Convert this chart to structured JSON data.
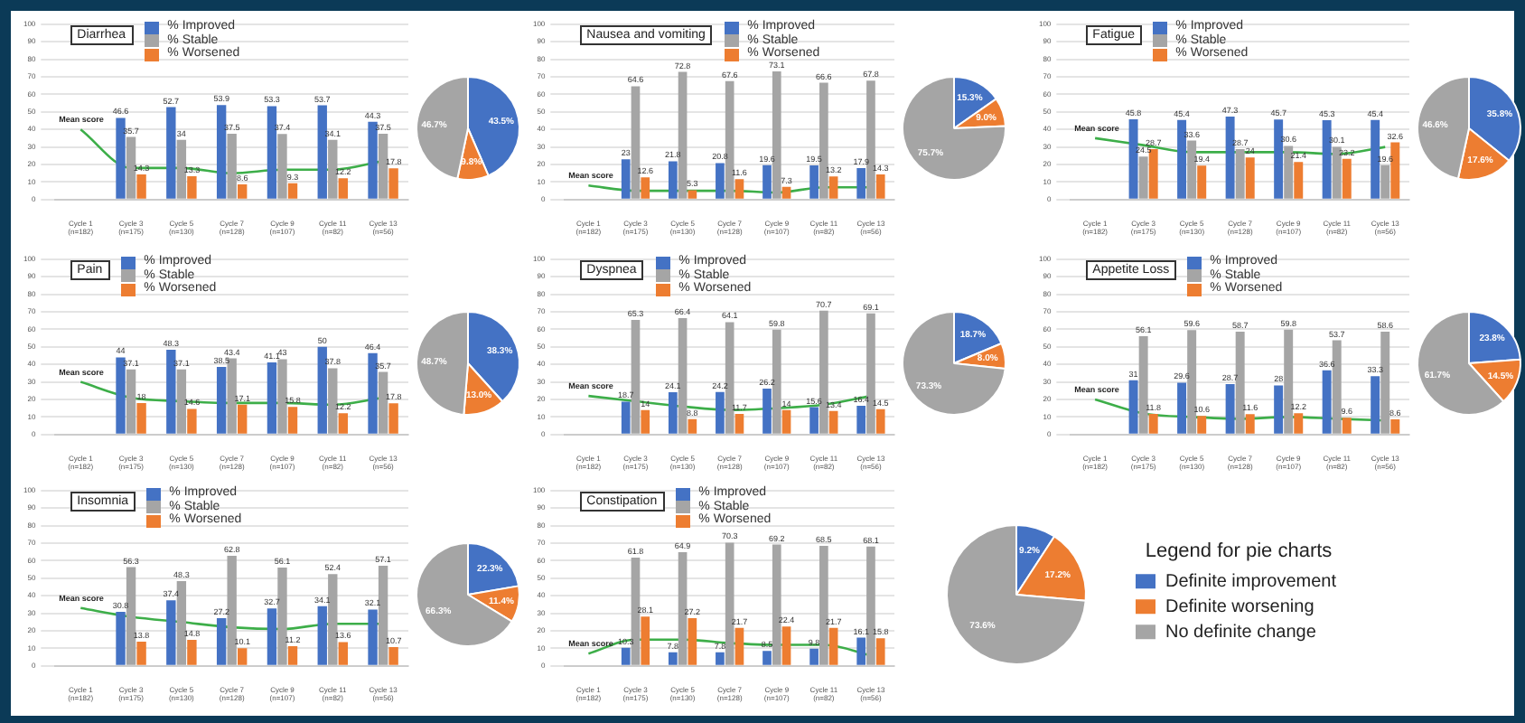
{
  "chart_data": [
    {
      "type": "bar",
      "title": "Diarrhea",
      "categories": [
        "Cycle 1 (n=182)",
        "Cycle 3 (n=175)",
        "Cycle 5 (n=130)",
        "Cycle 7 (n=128)",
        "Cycle 9 (n=107)",
        "Cycle 11 (n=82)",
        "Cycle 13 (n=56)"
      ],
      "ylim": [
        0,
        100
      ],
      "yticks": [
        0,
        10,
        20,
        30,
        40,
        50,
        60,
        70,
        80,
        90,
        100
      ],
      "grid": "y",
      "legend": "top left",
      "marker": "none",
      "series": [
        {
          "name": "% Improved",
          "color": "#4472c4",
          "values": [
            null,
            46.6,
            52.7,
            53.9,
            53.3,
            53.7,
            44.3
          ],
          "value_labels": [
            null,
            "46.6",
            "52.7",
            "53.9",
            "53.3",
            "53.7",
            "44.3"
          ]
        },
        {
          "name": "% Stable",
          "color": "#a5a5a5",
          "values": [
            null,
            35.7,
            34,
            37.5,
            37.4,
            34.1,
            37.5
          ],
          "value_labels": [
            null,
            "35.7",
            "34",
            "37.5",
            "37.4",
            "34.1",
            "37.5"
          ]
        },
        {
          "name": "% Worsened",
          "color": "#ed7d31",
          "values": [
            null,
            14.3,
            13.3,
            8.6,
            9.3,
            12.2,
            17.8
          ],
          "value_labels": [
            null,
            "14.3",
            "13.3",
            "8.6",
            "9.3",
            "12.2",
            "17.8"
          ]
        },
        {
          "name": "Mean score",
          "type": "line",
          "color": "#3dae49",
          "values": [
            40,
            18,
            18,
            15,
            17,
            17,
            22
          ]
        }
      ]
    },
    {
      "type": "pie",
      "colors": [
        "#4472c4",
        "#ed7d31",
        "#a5a5a5"
      ],
      "values": [
        43.5,
        9.8,
        46.7
      ],
      "value_labels": [
        "43.5%",
        "9.8%",
        "46.7%"
      ]
    },
    {
      "type": "bar",
      "title": "Nausea and vomiting",
      "categories": [
        "Cycle 1 (n=182)",
        "Cycle 3 (n=175)",
        "Cycle 5 (n=130)",
        "Cycle 7 (n=128)",
        "Cycle 9 (n=107)",
        "Cycle 11 (n=82)",
        "Cycle 13 (n=56)"
      ],
      "ylim": [
        0,
        100
      ],
      "yticks": [
        0,
        10,
        20,
        30,
        40,
        50,
        60,
        70,
        80,
        90,
        100
      ],
      "grid": "y",
      "legend": "top",
      "marker": "none",
      "series": [
        {
          "name": "% Improved",
          "color": "#4472c4",
          "values": [
            null,
            23,
            21.8,
            20.8,
            19.6,
            19.5,
            17.9
          ],
          "value_labels": [
            null,
            "23",
            "21.8",
            "20.8",
            "19.6",
            "19.5",
            "17.9"
          ]
        },
        {
          "name": "% Stable",
          "color": "#a5a5a5",
          "values": [
            null,
            64.6,
            72.8,
            67.6,
            73.1,
            66.6,
            67.8
          ],
          "value_labels": [
            null,
            "64.6",
            "72.8",
            "67.6",
            "73.1",
            "66.6",
            "67.8"
          ]
        },
        {
          "name": "% Worsened",
          "color": "#ed7d31",
          "values": [
            null,
            12.6,
            5.3,
            11.6,
            7.3,
            13.2,
            14.3
          ],
          "value_labels": [
            null,
            "12.6",
            "5.3",
            "11.6",
            "7.3",
            "13.2",
            "14.3"
          ]
        },
        {
          "name": "Mean score",
          "type": "line",
          "color": "#3dae49",
          "values": [
            8,
            5,
            5,
            5,
            4,
            7,
            7
          ]
        }
      ]
    },
    {
      "type": "pie",
      "colors": [
        "#4472c4",
        "#ed7d31",
        "#a5a5a5"
      ],
      "values": [
        15.3,
        9.0,
        75.7
      ],
      "value_labels": [
        "15.3%",
        "9.0%",
        "75.7%"
      ]
    },
    {
      "type": "bar",
      "title": "Fatigue",
      "categories": [
        "Cycle 1 (n=182)",
        "Cycle 3 (n=175)",
        "Cycle 5 (n=130)",
        "Cycle 7 (n=128)",
        "Cycle 9 (n=107)",
        "Cycle 11 (n=82)",
        "Cycle 13 (n=56)"
      ],
      "ylim": [
        0,
        100
      ],
      "yticks": [
        0,
        10,
        20,
        30,
        40,
        50,
        60,
        70,
        80,
        90,
        100
      ],
      "grid": "y",
      "legend": "top left",
      "marker": "none",
      "series": [
        {
          "name": "% Improved",
          "color": "#4472c4",
          "values": [
            null,
            45.8,
            45.4,
            47.3,
            45.7,
            45.3,
            45.4
          ],
          "value_labels": [
            null,
            "45.8",
            "45.4",
            "47.3",
            "45.7",
            "45.3",
            "45.4"
          ]
        },
        {
          "name": "% Stable",
          "color": "#a5a5a5",
          "values": [
            null,
            24.5,
            33.6,
            28.7,
            30.6,
            30.1,
            19.6
          ],
          "value_labels": [
            null,
            "24.5",
            "33.6",
            "28.7",
            "30.6",
            "30.1",
            "19.6"
          ]
        },
        {
          "name": "% Worsened",
          "color": "#ed7d31",
          "values": [
            null,
            28.7,
            19.4,
            24,
            21.4,
            23.2,
            32.6
          ],
          "value_labels": [
            null,
            "28.7",
            "19.4",
            "24",
            "21.4",
            "23.2",
            "32.6"
          ]
        },
        {
          "name": "Mean score",
          "type": "line",
          "color": "#3dae49",
          "values": [
            35,
            31,
            27,
            27,
            27,
            26,
            30
          ]
        }
      ]
    },
    {
      "type": "pie",
      "colors": [
        "#4472c4",
        "#ed7d31",
        "#a5a5a5"
      ],
      "values": [
        35.8,
        17.6,
        46.6
      ],
      "value_labels": [
        "35.8%",
        "17.6%",
        "46.6%"
      ]
    },
    {
      "type": "bar",
      "title": "Pain",
      "categories": [
        "Cycle 1 (n=182)",
        "Cycle 3 (n=175)",
        "Cycle 5 (n=130)",
        "Cycle 7 (n=128)",
        "Cycle 9 (n=107)",
        "Cycle 11 (n=82)",
        "Cycle 13 (n=56)"
      ],
      "ylim": [
        0,
        100
      ],
      "yticks": [
        0,
        10,
        20,
        30,
        40,
        50,
        60,
        70,
        80,
        90,
        100
      ],
      "grid": "y",
      "legend": "top left",
      "marker": "none",
      "series": [
        {
          "name": "% Improved",
          "color": "#4472c4",
          "values": [
            null,
            44,
            48.3,
            38.5,
            41.1,
            50,
            46.4
          ],
          "value_labels": [
            null,
            "44",
            "48.3",
            "38.5",
            "41.1",
            "50",
            "46.4"
          ]
        },
        {
          "name": "% Stable",
          "color": "#a5a5a5",
          "values": [
            null,
            37.1,
            37.1,
            43.4,
            43,
            37.8,
            35.7
          ],
          "value_labels": [
            null,
            "37.1",
            "37.1",
            "43.4",
            "43",
            "37.8",
            "35.7"
          ]
        },
        {
          "name": "% Worsened",
          "color": "#ed7d31",
          "values": [
            null,
            18,
            14.6,
            17.1,
            15.8,
            12.2,
            17.8
          ],
          "value_labels": [
            null,
            "18",
            "14.6",
            "17.1",
            "15.8",
            "12.2",
            "17.8"
          ]
        },
        {
          "name": "Mean score",
          "type": "line",
          "color": "#3dae49",
          "values": [
            30,
            21,
            19,
            18,
            18,
            17,
            21
          ]
        }
      ]
    },
    {
      "type": "pie",
      "colors": [
        "#4472c4",
        "#ed7d31",
        "#a5a5a5"
      ],
      "values": [
        38.3,
        13.0,
        48.7
      ],
      "value_labels": [
        "38.3%",
        "13.0%",
        "48.7%"
      ]
    },
    {
      "type": "bar",
      "title": "Dyspnea",
      "categories": [
        "Cycle 1 (n=182)",
        "Cycle 3 (n=175)",
        "Cycle 5 (n=130)",
        "Cycle 7 (n=128)",
        "Cycle 9 (n=107)",
        "Cycle 11 (n=82)",
        "Cycle 13 (n=56)"
      ],
      "ylim": [
        0,
        100
      ],
      "yticks": [
        0,
        10,
        20,
        30,
        40,
        50,
        60,
        70,
        80,
        90,
        100
      ],
      "grid": "y",
      "legend": "top left",
      "marker": "none",
      "series": [
        {
          "name": "% Improved",
          "color": "#4472c4",
          "values": [
            null,
            18.7,
            24.1,
            24.2,
            26.2,
            15.6,
            16.4
          ],
          "value_labels": [
            null,
            "18.7",
            "24.1",
            "24.2",
            "26.2",
            "15.6",
            "16.4"
          ]
        },
        {
          "name": "% Stable",
          "color": "#a5a5a5",
          "values": [
            null,
            65.3,
            66.4,
            64.1,
            59.8,
            70.7,
            69.1
          ],
          "value_labels": [
            null,
            "65.3",
            "66.4",
            "64.1",
            "59.8",
            "70.7",
            "69.1"
          ]
        },
        {
          "name": "% Worsened",
          "color": "#ed7d31",
          "values": [
            null,
            14,
            8.8,
            11.7,
            14,
            13.4,
            14.5
          ],
          "value_labels": [
            null,
            "14",
            "8.8",
            "11.7",
            "14",
            "13.4",
            "14.5"
          ]
        },
        {
          "name": "Mean score",
          "type": "line",
          "color": "#3dae49",
          "values": [
            22,
            19,
            16,
            14,
            15,
            17,
            22
          ]
        }
      ]
    },
    {
      "type": "pie",
      "colors": [
        "#4472c4",
        "#ed7d31",
        "#a5a5a5"
      ],
      "values": [
        18.7,
        8.0,
        73.3
      ],
      "value_labels": [
        "18.7%",
        "8.0%",
        "73.3%"
      ]
    },
    {
      "type": "bar",
      "title": "Appetite Loss",
      "categories": [
        "Cycle 1 (n=182)",
        "Cycle 3 (n=175)",
        "Cycle 5 (n=130)",
        "Cycle 7 (n=128)",
        "Cycle 9 (n=107)",
        "Cycle 11 (n=82)",
        "Cycle 13 (n=56)"
      ],
      "ylim": [
        0,
        100
      ],
      "yticks": [
        0,
        10,
        20,
        30,
        40,
        50,
        60,
        70,
        80,
        90,
        100
      ],
      "grid": "y",
      "legend": "top left",
      "marker": "none",
      "series": [
        {
          "name": "% Improved",
          "color": "#4472c4",
          "values": [
            null,
            31,
            29.6,
            28.7,
            28,
            36.6,
            33.3
          ],
          "value_labels": [
            null,
            "31",
            "29.6",
            "28.7",
            "28",
            "36.6",
            "33.3"
          ]
        },
        {
          "name": "% Stable",
          "color": "#a5a5a5",
          "values": [
            null,
            56.1,
            59.6,
            58.7,
            59.8,
            53.7,
            58.6
          ],
          "value_labels": [
            null,
            "56.1",
            "59.6",
            "58.7",
            "59.8",
            "53.7",
            "58.6"
          ]
        },
        {
          "name": "% Worsened",
          "color": "#ed7d31",
          "values": [
            null,
            11.8,
            10.6,
            11.6,
            12.2,
            9.6,
            8.6
          ],
          "value_labels": [
            null,
            "11.8",
            "10.6",
            "11.6",
            "12.2",
            "9.6",
            "8.6"
          ]
        },
        {
          "name": "Mean score",
          "type": "line",
          "color": "#3dae49",
          "values": [
            20,
            12,
            10,
            9,
            10,
            9,
            8
          ]
        }
      ]
    },
    {
      "type": "pie",
      "colors": [
        "#4472c4",
        "#ed7d31",
        "#a5a5a5"
      ],
      "values": [
        23.8,
        14.5,
        61.7
      ],
      "value_labels": [
        "23.8%",
        "14.5%",
        "61.7%"
      ]
    },
    {
      "type": "bar",
      "title": "Insomnia",
      "categories": [
        "Cycle 1 (n=182)",
        "Cycle 3 (n=175)",
        "Cycle 5 (n=130)",
        "Cycle 7 (n=128)",
        "Cycle 9 (n=107)",
        "Cycle 11 (n=82)",
        "Cycle 13 (n=56)"
      ],
      "ylim": [
        0,
        100
      ],
      "yticks": [
        0,
        10,
        20,
        30,
        40,
        50,
        60,
        70,
        80,
        90,
        100
      ],
      "grid": "y",
      "legend": "top left",
      "marker": "none",
      "series": [
        {
          "name": "% Improved",
          "color": "#4472c4",
          "values": [
            null,
            30.8,
            37.4,
            27.2,
            32.7,
            34.1,
            32.1
          ],
          "value_labels": [
            null,
            "30.8",
            "37.4",
            "27.2",
            "32.7",
            "34.1",
            "32.1"
          ]
        },
        {
          "name": "% Stable",
          "color": "#a5a5a5",
          "values": [
            null,
            56.3,
            48.3,
            62.8,
            56.1,
            52.4,
            57.1
          ],
          "value_labels": [
            null,
            "56.3",
            "48.3",
            "62.8",
            "56.1",
            "52.4",
            "57.1"
          ]
        },
        {
          "name": "% Worsened",
          "color": "#ed7d31",
          "values": [
            null,
            13.8,
            14.8,
            10.1,
            11.2,
            13.6,
            10.7
          ],
          "value_labels": [
            null,
            "13.8",
            "14.8",
            "10.1",
            "11.2",
            "13.6",
            "10.7"
          ]
        },
        {
          "name": "Mean score",
          "type": "line",
          "color": "#3dae49",
          "values": [
            33,
            28,
            25,
            22,
            21,
            24,
            24
          ]
        }
      ]
    },
    {
      "type": "pie",
      "colors": [
        "#4472c4",
        "#ed7d31",
        "#a5a5a5"
      ],
      "values": [
        22.3,
        11.4,
        66.3
      ],
      "value_labels": [
        "22.3%",
        "11.4%",
        "66.3%"
      ]
    },
    {
      "type": "bar",
      "title": "Constipation",
      "categories": [
        "Cycle 1 (n=182)",
        "Cycle 3 (n=175)",
        "Cycle 5 (n=130)",
        "Cycle 7 (n=128)",
        "Cycle 9 (n=107)",
        "Cycle 11 (n=82)",
        "Cycle 13 (n=56)"
      ],
      "ylim": [
        0,
        100
      ],
      "yticks": [
        0,
        10,
        20,
        30,
        40,
        50,
        60,
        70,
        80,
        90,
        100
      ],
      "grid": "y",
      "legend": "top left",
      "marker": "none",
      "series": [
        {
          "name": "% Improved",
          "color": "#4472c4",
          "values": [
            null,
            10.3,
            7.8,
            7.8,
            8.5,
            9.8,
            16.1
          ],
          "value_labels": [
            null,
            "10.3",
            "7.8",
            "7.8",
            "8.5",
            "9.8",
            "16.1"
          ]
        },
        {
          "name": "% Stable",
          "color": "#a5a5a5",
          "values": [
            null,
            61.8,
            64.9,
            70.3,
            69.2,
            68.5,
            68.1
          ],
          "value_labels": [
            null,
            "61.8",
            "64.9",
            "70.3",
            "69.2",
            "68.5",
            "68.1"
          ]
        },
        {
          "name": "% Worsened",
          "color": "#ed7d31",
          "values": [
            null,
            28.1,
            27.2,
            21.7,
            22.4,
            21.7,
            15.8
          ],
          "value_labels": [
            null,
            "28.1",
            "27.2",
            "21.7",
            "22.4",
            "21.7",
            "15.8"
          ]
        },
        {
          "name": "Mean score",
          "type": "line",
          "color": "#3dae49",
          "values": [
            7,
            15,
            15,
            13,
            12,
            12,
            6
          ]
        }
      ]
    },
    {
      "type": "pie",
      "categories": [
        "Definite improvement",
        "Definite worsening",
        "No definite change"
      ],
      "colors": [
        "#4472c4",
        "#ed7d31",
        "#a5a5a5"
      ],
      "values": [
        9.2,
        17.2,
        73.6
      ],
      "value_labels": [
        "9.2%",
        "17.2%",
        "73.6%"
      ],
      "legend": "right",
      "legend_title": "Legend for pie charts"
    }
  ]
}
